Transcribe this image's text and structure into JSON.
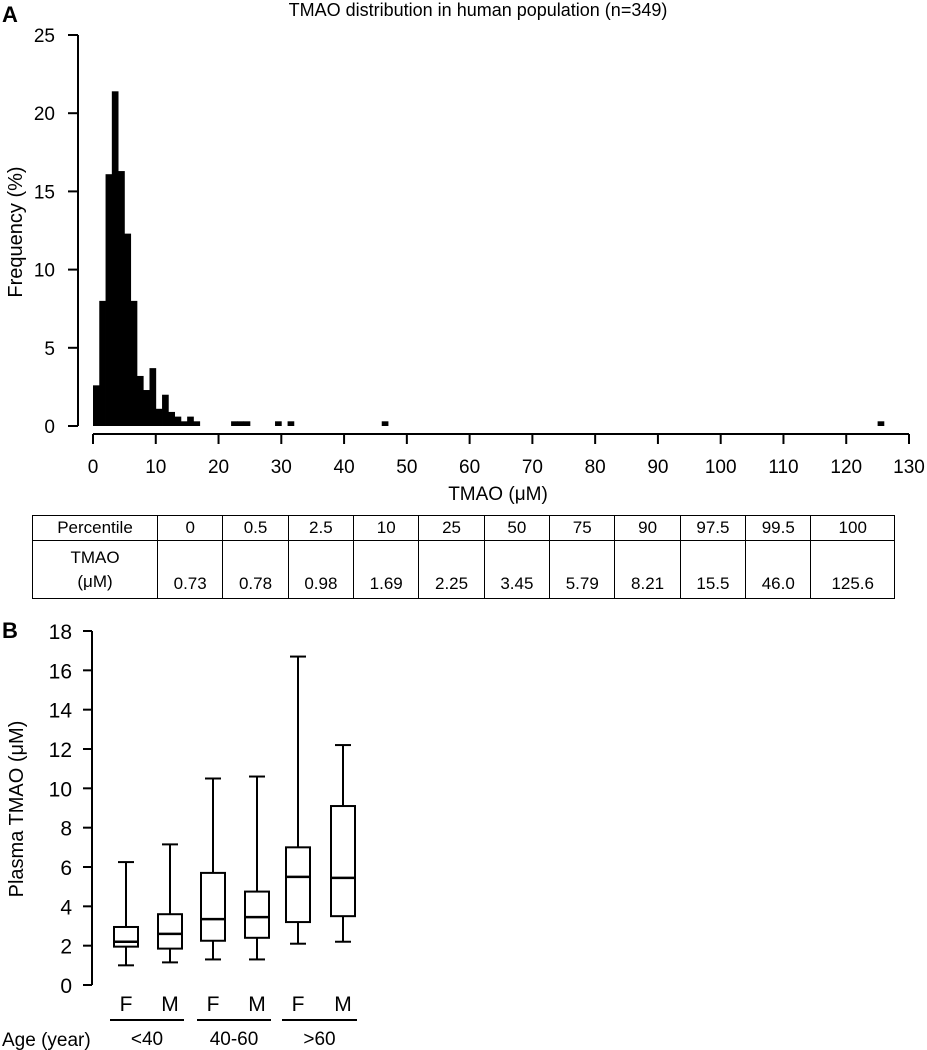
{
  "panels": {
    "a_letter": "A",
    "b_letter": "B"
  },
  "chart_data": [
    {
      "type": "bar",
      "panel": "A",
      "title": "TMAO distribution in human population (n=349)",
      "xlabel": "TMAO (μM)",
      "ylabel": "Frequency (%)",
      "xlim": [
        0,
        130
      ],
      "ylim": [
        0,
        25
      ],
      "x_ticks": [
        0,
        10,
        20,
        30,
        40,
        50,
        60,
        70,
        80,
        90,
        100,
        110,
        120,
        130
      ],
      "y_ticks": [
        0,
        5,
        10,
        15,
        20,
        25
      ],
      "bin_width": 1,
      "bins": [
        {
          "x": 0.5,
          "value": 2.6
        },
        {
          "x": 1.5,
          "value": 8.0
        },
        {
          "x": 2.5,
          "value": 16.1
        },
        {
          "x": 3.5,
          "value": 21.4
        },
        {
          "x": 4.5,
          "value": 16.3
        },
        {
          "x": 5.5,
          "value": 12.3
        },
        {
          "x": 6.5,
          "value": 8.0
        },
        {
          "x": 7.5,
          "value": 3.2
        },
        {
          "x": 8.5,
          "value": 2.3
        },
        {
          "x": 9.5,
          "value": 3.7
        },
        {
          "x": 10.5,
          "value": 1.1
        },
        {
          "x": 11.5,
          "value": 2.0
        },
        {
          "x": 12.5,
          "value": 0.9
        },
        {
          "x": 13.5,
          "value": 0.6
        },
        {
          "x": 14.5,
          "value": 0.3
        },
        {
          "x": 15.5,
          "value": 0.6
        },
        {
          "x": 16.5,
          "value": 0.3
        },
        {
          "x": 22.5,
          "value": 0.3
        },
        {
          "x": 23.5,
          "value": 0.3
        },
        {
          "x": 24.5,
          "value": 0.3
        },
        {
          "x": 29.5,
          "value": 0.3
        },
        {
          "x": 31.5,
          "value": 0.3
        },
        {
          "x": 46.5,
          "value": 0.3
        },
        {
          "x": 125.5,
          "value": 0.3
        }
      ]
    },
    {
      "type": "table",
      "panel": "A",
      "header": "Percentile",
      "row_label_line1": "TMAO",
      "row_label_line2": "(μM)",
      "percentiles": [
        "0",
        "0.5",
        "2.5",
        "10",
        "25",
        "50",
        "75",
        "90",
        "97.5",
        "99.5",
        "100"
      ],
      "values": [
        "0.73",
        "0.78",
        "0.98",
        "1.69",
        "2.25",
        "3.45",
        "5.79",
        "8.21",
        "15.5",
        "46.0",
        "125.6"
      ]
    },
    {
      "type": "box",
      "panel": "B",
      "ylabel": "Plasma TMAO (μM)",
      "ylim": [
        0,
        18
      ],
      "y_ticks": [
        0,
        2,
        4,
        6,
        8,
        10,
        12,
        14,
        16,
        18
      ],
      "age_label": "Age (year)",
      "groups": [
        "<40",
        "40-60",
        ">60"
      ],
      "boxes": [
        {
          "group": "<40",
          "sex": "F",
          "min": 1.0,
          "q1": 1.95,
          "median": 2.2,
          "q3": 2.95,
          "max": 6.25
        },
        {
          "group": "<40",
          "sex": "M",
          "min": 1.15,
          "q1": 1.85,
          "median": 2.6,
          "q3": 3.6,
          "max": 7.15
        },
        {
          "group": "40-60",
          "sex": "F",
          "min": 1.3,
          "q1": 2.25,
          "median": 3.35,
          "q3": 5.7,
          "max": 10.5
        },
        {
          "group": "40-60",
          "sex": "M",
          "min": 1.3,
          "q1": 2.4,
          "median": 3.45,
          "q3": 4.75,
          "max": 10.6
        },
        {
          "group": ">60",
          "sex": "F",
          "min": 2.1,
          "q1": 3.2,
          "median": 5.5,
          "q3": 7.0,
          "max": 16.7
        },
        {
          "group": ">60",
          "sex": "M",
          "min": 2.2,
          "q1": 3.5,
          "median": 5.45,
          "q3": 9.1,
          "max": 12.2
        }
      ]
    }
  ]
}
